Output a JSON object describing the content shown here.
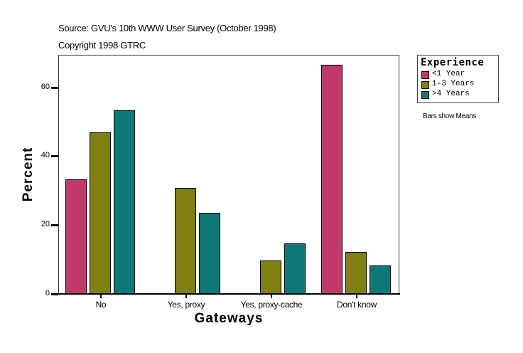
{
  "header": {
    "source": "Source: GVU's 10th WWW User Survey (October 1998)",
    "copyright": "Copyright 1998 GTRC"
  },
  "legend": {
    "title": "Experience",
    "items": [
      {
        "label": "<1 Year",
        "color": "#C0396A"
      },
      {
        "label": "1-3 Years",
        "color": "#7F7F12"
      },
      {
        "label": ">4 Years",
        "color": "#0E7777"
      }
    ]
  },
  "note": "Bars show Means",
  "axes": {
    "xlabel": "Gateways",
    "ylabel": "Percent",
    "yticks": [
      "0",
      "20",
      "40",
      "60"
    ]
  },
  "chart_data": {
    "type": "bar",
    "title": "Source: GVU's 10th WWW User Survey (October 1998)",
    "subtitle": "Copyright 1998 GTRC",
    "xlabel": "Gateways",
    "ylabel": "Percent",
    "categories": [
      "No",
      "Yes, proxy",
      "Yes, proxy-cache",
      "Don't know"
    ],
    "series": [
      {
        "name": "<1 Year",
        "color": "#C0396A",
        "values": [
          33.3,
          0,
          0,
          66.7
        ]
      },
      {
        "name": "1-3 Years",
        "color": "#7F7F12",
        "values": [
          47.0,
          30.8,
          9.7,
          12.2
        ]
      },
      {
        "name": ">4 Years",
        "color": "#0E7777",
        "values": [
          53.4,
          23.6,
          14.7,
          8.3
        ]
      }
    ],
    "ylim": [
      0,
      69.5
    ],
    "yticks": [
      0,
      20,
      40,
      60
    ],
    "grid": false,
    "legend_position": "right",
    "annotation": "Bars show Means"
  }
}
